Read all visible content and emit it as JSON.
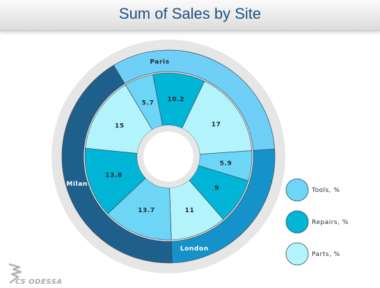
{
  "title": "Sum of Sales by Site",
  "logo_text": "CS ODESSA",
  "colors": {
    "milan": "#1f5f8b",
    "paris": "#6fcff6",
    "london": "#1592c9",
    "tools": "#6dd6f7",
    "repairs": "#00b5d6",
    "parts": "#b3f4fc",
    "outline": "#3a4a58",
    "track": "#e6e6e6"
  },
  "chart_data": {
    "type": "sunburst",
    "title": "Sum of Sales by Site",
    "sites": [
      {
        "name": "Paris",
        "color": "#6fcff6"
      },
      {
        "name": "London",
        "color": "#1592c9"
      },
      {
        "name": "Milan",
        "color": "#1f5f8b"
      }
    ],
    "categories": [
      "Tools, %",
      "Repairs, %",
      "Parts, %"
    ],
    "segments": [
      {
        "site": "Paris",
        "category": "Tools, %",
        "value": 5.7
      },
      {
        "site": "Paris",
        "category": "Repairs, %",
        "value": 10.2
      },
      {
        "site": "Paris",
        "category": "Parts, %",
        "value": 17
      },
      {
        "site": "London",
        "category": "Tools, %",
        "value": 5.9
      },
      {
        "site": "London",
        "category": "Repairs, %",
        "value": 9
      },
      {
        "site": "London",
        "category": "Parts, %",
        "value": 11
      },
      {
        "site": "Milan",
        "category": "Tools, %",
        "value": 13.7
      },
      {
        "site": "Milan",
        "category": "Repairs, %",
        "value": 13.8
      },
      {
        "site": "Milan",
        "category": "Parts, %",
        "value": 15
      }
    ],
    "legend": [
      {
        "label": "Tools, %",
        "color": "#6dd6f7"
      },
      {
        "label": "Repairs, %",
        "color": "#00b5d6"
      },
      {
        "label": "Parts, %",
        "color": "#b3f4fc"
      }
    ],
    "legend_position": "right"
  }
}
